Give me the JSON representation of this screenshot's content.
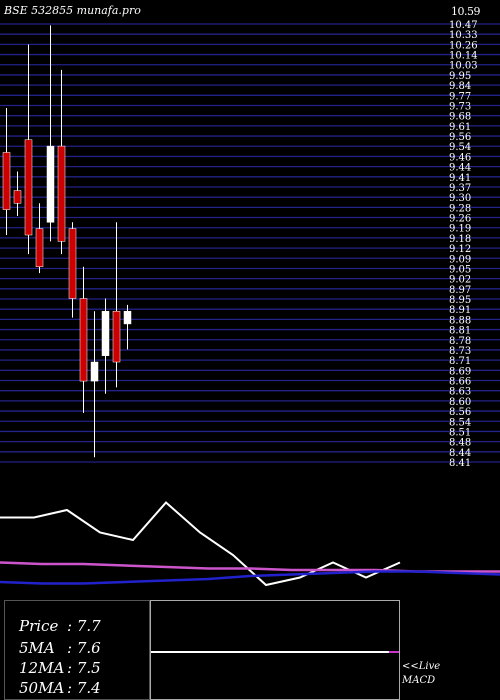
{
  "header": {
    "title": "BSE 532855 munafa.pro",
    "top_price": "10.59"
  },
  "chart_data": {
    "type": "candlestick",
    "price_labels": [
      "10.47",
      "10.33",
      "10.26",
      "10.14",
      "10.03",
      "9.95",
      "9.84",
      "9.77",
      "9.73",
      "9.68",
      "9.61",
      "9.56",
      "9.54",
      "9.46",
      "9.44",
      "9.41",
      "9.37",
      "9.30",
      "9.28",
      "9.26",
      "9.19",
      "9.18",
      "9.12",
      "9.09",
      "9.05",
      "9.02",
      "8.97",
      "8.95",
      "8.91",
      "8.88",
      "8.81",
      "8.78",
      "8.73",
      "8.71",
      "8.69",
      "8.66",
      "8.63",
      "8.60",
      "8.56",
      "8.54",
      "8.51",
      "8.48",
      "8.44",
      "8.41"
    ],
    "price_range": [
      7.0,
      10.59
    ],
    "candles": [
      {
        "o": 9.5,
        "h": 9.85,
        "l": 8.85,
        "c": 9.05
      },
      {
        "o": 9.2,
        "h": 9.35,
        "l": 9.0,
        "c": 9.1
      },
      {
        "o": 9.6,
        "h": 10.35,
        "l": 8.7,
        "c": 8.85
      },
      {
        "o": 8.9,
        "h": 9.1,
        "l": 8.55,
        "c": 8.6
      },
      {
        "o": 8.95,
        "h": 10.5,
        "l": 8.8,
        "c": 9.55
      },
      {
        "o": 9.55,
        "h": 10.15,
        "l": 8.7,
        "c": 8.8
      },
      {
        "o": 8.9,
        "h": 8.95,
        "l": 8.2,
        "c": 8.35
      },
      {
        "o": 8.35,
        "h": 8.6,
        "l": 7.45,
        "c": 7.7
      },
      {
        "o": 7.7,
        "h": 8.25,
        "l": 7.1,
        "c": 7.85
      },
      {
        "o": 7.9,
        "h": 8.35,
        "l": 7.6,
        "c": 8.25
      },
      {
        "o": 8.25,
        "h": 8.95,
        "l": 7.65,
        "c": 7.85
      },
      {
        "o": 8.15,
        "h": 8.3,
        "l": 7.95,
        "c": 8.25
      }
    ],
    "indicator_lines": [
      {
        "name": "",
        "color": "#ffffff",
        "values": [
          7.55,
          7.55,
          7.6,
          7.45,
          7.4,
          7.65,
          7.45,
          7.3,
          7.1,
          7.15,
          7.25,
          7.15,
          7.25
        ]
      },
      {
        "name": "",
        "color": "#cc55cc",
        "values": [
          7.25,
          7.24,
          7.24,
          7.23,
          7.22,
          7.21,
          7.21,
          7.2,
          7.2,
          7.2,
          7.19,
          7.19,
          7.19
        ]
      },
      {
        "name": "",
        "color": "#2222cc",
        "values": [
          7.12,
          7.11,
          7.11,
          7.12,
          7.13,
          7.14,
          7.16,
          7.17,
          7.18,
          7.19,
          7.19,
          7.18,
          7.17
        ]
      }
    ]
  },
  "legend": {
    "price_label": "Price",
    "price_value": ": 7.7",
    "ma5_label": "5MA",
    "ma5_value": ": 7.6",
    "ma12_label": "12MA",
    "ma12_value": ": 7.5",
    "ma50_label": "50MA",
    "ma50_value": ": 7.4"
  },
  "macd": {
    "live_label": "<<Live",
    "macd_label": "MACD"
  },
  "colors": {
    "grid": "#222288",
    "bear": "#cc0000",
    "bull": "#ffffff",
    "ma50": "#cc55cc",
    "long": "#2222cc"
  }
}
